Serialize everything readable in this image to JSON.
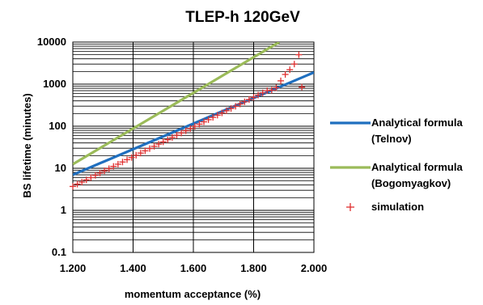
{
  "chart_data": {
    "type": "line",
    "title": "TLEP-h 120GeV",
    "xlabel": "momentum acceptance (%)",
    "ylabel": "BS lifetime (minutes)",
    "xlim": [
      1.2,
      2.0
    ],
    "ylim": [
      0.1,
      10000
    ],
    "yscale": "log",
    "x_ticks": [
      "1.200",
      "1.400",
      "1.600",
      "1.800",
      "2.000"
    ],
    "y_ticks": [
      "0.1",
      "1",
      "10",
      "100",
      "1000",
      "10000"
    ],
    "grid": true,
    "legend_position": "right",
    "series": [
      {
        "name": "Analytical formula (Telnov)",
        "legend_lines": [
          "Analytical formula",
          "(Telnov)"
        ],
        "style": "line",
        "color": "#1f6fbf",
        "x": [
          1.2,
          2.0
        ],
        "y": [
          7,
          1900
        ]
      },
      {
        "name": "Analytical formula (Bogomyagkov)",
        "legend_lines": [
          "Analytical formula",
          "(Bogomyagkov)"
        ],
        "style": "line",
        "color": "#9bbb59",
        "x": [
          1.2,
          1.885
        ],
        "y": [
          12.5,
          10000
        ]
      },
      {
        "name": "simulation",
        "legend_lines": [
          "simulation"
        ],
        "style": "marker-plus",
        "color": "#e03030",
        "x": [
          1.2,
          1.215,
          1.23,
          1.245,
          1.26,
          1.275,
          1.29,
          1.305,
          1.32,
          1.335,
          1.35,
          1.365,
          1.38,
          1.395,
          1.41,
          1.425,
          1.44,
          1.455,
          1.47,
          1.485,
          1.5,
          1.515,
          1.53,
          1.545,
          1.56,
          1.575,
          1.59,
          1.605,
          1.62,
          1.635,
          1.65,
          1.665,
          1.68,
          1.695,
          1.71,
          1.725,
          1.74,
          1.755,
          1.77,
          1.785,
          1.8,
          1.815,
          1.83,
          1.845,
          1.86,
          1.875,
          1.89,
          1.905,
          1.92,
          1.935,
          1.95,
          1.96
        ],
        "y": [
          3.7,
          4.2,
          4.7,
          5.3,
          6.0,
          6.8,
          7.7,
          8.7,
          9.8,
          11.1,
          12.5,
          14.1,
          16.0,
          18.0,
          20.4,
          23.0,
          26.0,
          29.4,
          33.2,
          37.5,
          42.4,
          47.9,
          54.1,
          61.1,
          69.0,
          78.0,
          88.1,
          99.5,
          112,
          127,
          143,
          162,
          183,
          207,
          234,
          264,
          298,
          337,
          381,
          430,
          486,
          549,
          620,
          700,
          720,
          820,
          1200,
          1700,
          2200,
          3000,
          5000,
          850
        ]
      }
    ]
  }
}
